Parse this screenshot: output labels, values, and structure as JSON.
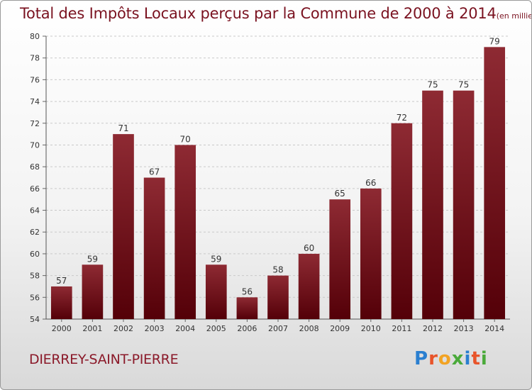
{
  "chart_data": {
    "type": "bar",
    "title": "Total des Impôts Locaux perçus par la Commune de 2000 à 2014",
    "unit": "(en milliers d'€)",
    "xlabel": "",
    "ylabel": "",
    "categories": [
      "2000",
      "2001",
      "2002",
      "2003",
      "2004",
      "2005",
      "2006",
      "2007",
      "2008",
      "2009",
      "2010",
      "2011",
      "2012",
      "2013",
      "2014"
    ],
    "values": [
      57,
      59,
      71,
      67,
      70,
      59,
      56,
      58,
      60,
      65,
      66,
      72,
      75,
      75,
      79
    ],
    "ylim": [
      54,
      80
    ],
    "yticks": [
      54,
      56,
      58,
      60,
      62,
      64,
      66,
      68,
      70,
      72,
      74,
      76,
      78,
      80
    ],
    "grid": true,
    "bar_color": "#7a1220"
  },
  "footer": {
    "commune": "DIERREY-SAINT-PIERRE"
  },
  "logo": {
    "letters": [
      "P",
      "r",
      "o",
      "x",
      "i",
      "t",
      "i"
    ],
    "colors": [
      "#2a7fd0",
      "#e8542a",
      "#f2a323",
      "#4aaa3a",
      "#2a7fd0",
      "#e8542a",
      "#4aaa3a"
    ]
  }
}
